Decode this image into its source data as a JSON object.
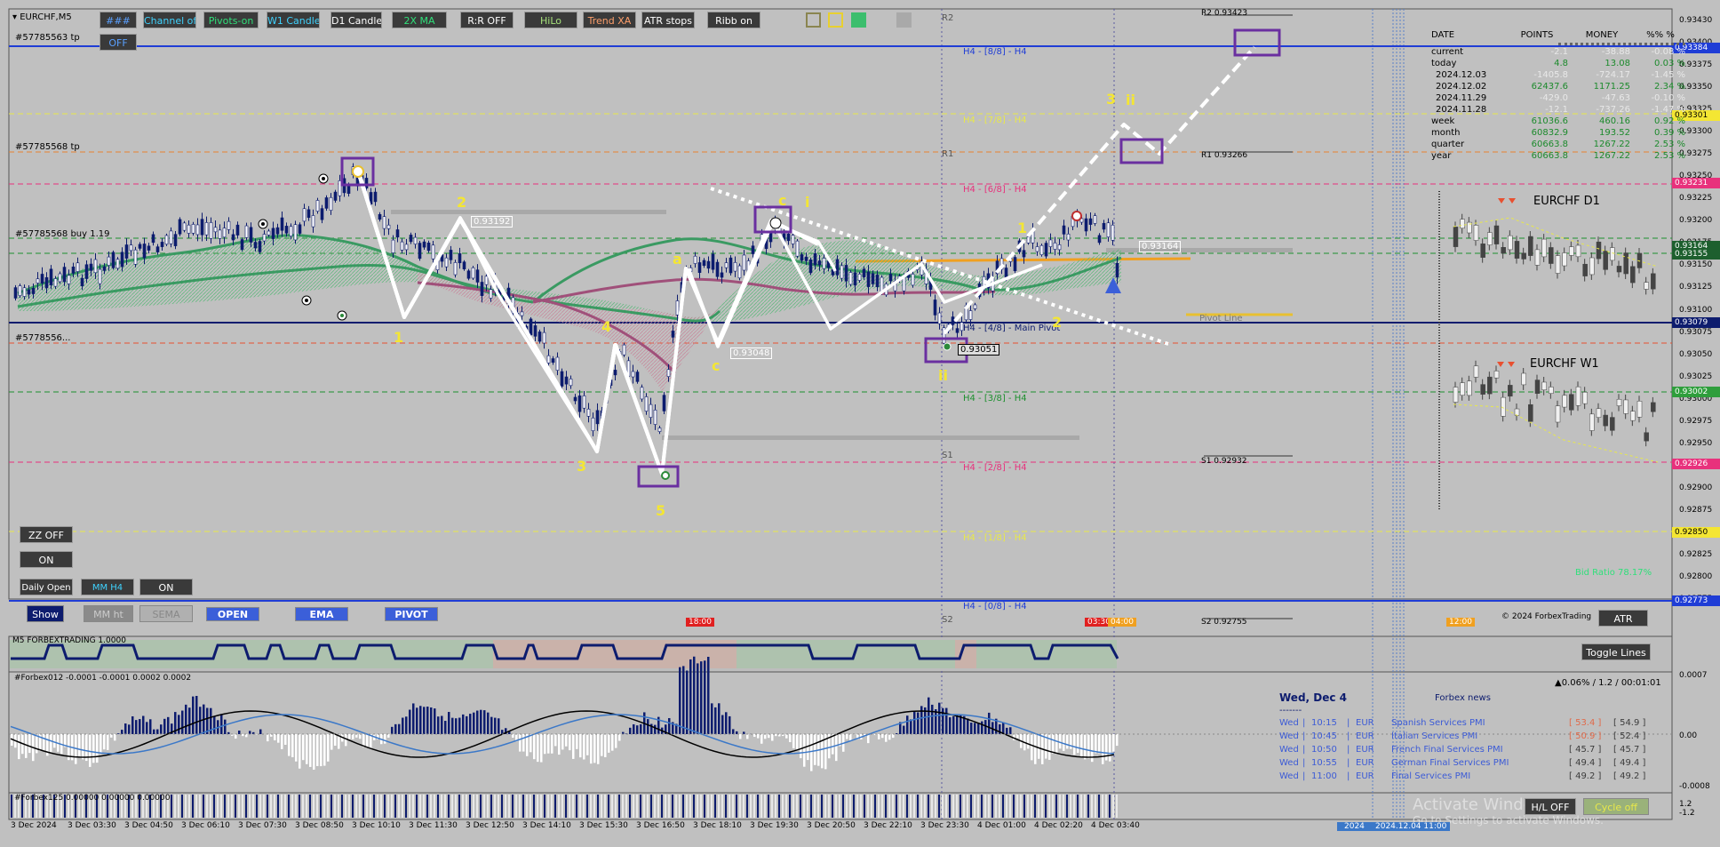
{
  "symbol_title": "EURCHF,M5",
  "toolbar": {
    "buttons": [
      "###",
      "Channel off",
      "Pivots-on",
      "W1 Candle",
      "D1 Candle",
      "2X MA",
      "R:R OFF",
      "HiLo",
      "Trend XA",
      "ATR stops",
      "Ribb on"
    ],
    "colors": [
      "#5aa0ff",
      "#3fd3ff",
      "#2fe07a",
      "#3fd3ff",
      "#ffffff",
      "#2fe07a",
      "#ffffff",
      "#a5e07a",
      "#ff9f6b",
      "#ffffff",
      "#ffffff"
    ],
    "off": "OFF",
    "swatch_colors": [
      "#d9d68a",
      "#f4e633",
      "#3cbe6d",
      "#a9a9a9"
    ]
  },
  "trade_labels": {
    "tp1": "#57785563 tp",
    "tp2": "#57785568 tp",
    "buy": "#57785568 buy 1.19",
    "short": "#5778556..."
  },
  "pivots": {
    "r2": "R2",
    "r2_val": "R2 0.93423",
    "r1": "R1",
    "r1_val": "R1 0.93266",
    "s1": "S1",
    "s1_val": "S1 0.92932",
    "s2": "S2",
    "s2_val": "S2 0.92755",
    "pivot_line": "Pivot Line"
  },
  "murrey": {
    "h88": "H4 - [8/8] - H4",
    "h78": "H4 - [7/8] - H4",
    "h68": "H4 - [6/8] - H4",
    "h48": "H4 - [4/8] - Main Pivot",
    "h38": "H4 - [3/8] - H4",
    "h28": "H4 - [2/8] - H4",
    "h18": "H4 - [1/8] - H4",
    "h08": "H4 - [0/8] - H4"
  },
  "price_scale": [
    "0.93430",
    "0.93400",
    "0.93375",
    "0.93350",
    "0.93325",
    "0.93300",
    "0.93275",
    "0.93250",
    "0.93225",
    "0.93200",
    "0.93175",
    "0.93150",
    "0.93125",
    "0.93100",
    "0.93075",
    "0.93050",
    "0.93025",
    "0.93000",
    "0.92975",
    "0.92950",
    "0.92925",
    "0.92900",
    "0.92875",
    "0.92850",
    "0.92825",
    "0.92800",
    "0.92775"
  ],
  "price_tags": [
    {
      "text": "0.93384",
      "bg": "#1f3dd6",
      "fg": "#ffffff"
    },
    {
      "text": "0.93301",
      "bg": "#f4e633",
      "fg": "#000000"
    },
    {
      "text": "0.93231",
      "bg": "#e8317c",
      "fg": "#ffffff"
    },
    {
      "text": "0.93164",
      "bg": "#1d5f2e",
      "fg": "#ffffff"
    },
    {
      "text": "0.93155",
      "bg": "#1d5f2e",
      "fg": "#ffffff"
    },
    {
      "text": "0.93079",
      "bg": "#0d1c6e",
      "fg": "#ffffff"
    },
    {
      "text": "0.93002",
      "bg": "#2f9e3c",
      "fg": "#ffffff"
    },
    {
      "text": "0.92926",
      "bg": "#e8317c",
      "fg": "#ffffff"
    },
    {
      "text": "0.92850",
      "bg": "#f4e633",
      "fg": "#000000"
    },
    {
      "text": "0.92773",
      "bg": "#1f3dd6",
      "fg": "#ffffff"
    }
  ],
  "price_boxes": [
    "0.93192",
    "0.93048",
    "0.93051",
    "0.93164"
  ],
  "wave_labels": [
    "1",
    "2",
    "3",
    "4",
    "5",
    "a",
    "c",
    "c",
    "i",
    "ii",
    "1",
    "2",
    "3",
    "ii"
  ],
  "stats": {
    "headers": [
      "DATE",
      "POINTS",
      "MONEY",
      "%%  %"
    ],
    "rows": [
      [
        "current",
        "-2.1",
        "-38.88",
        "-0.08  %"
      ],
      [
        "today",
        "4.8",
        "13.08",
        "0.03  %"
      ],
      [
        "2024.12.03",
        "-1405.8",
        "-724.17",
        "-1.45  %"
      ],
      [
        "2024.12.02",
        "62437.6",
        "1171.25",
        "2.34  %"
      ],
      [
        "2024.11.29",
        "-429.0",
        "-47.63",
        "-0.10  %"
      ],
      [
        "2024.11.28",
        "-12.1",
        "-737.26",
        "-1.47  %"
      ],
      [
        "week",
        "61036.6",
        "460.16",
        "0.92  %"
      ],
      [
        "month",
        "60832.9",
        "193.52",
        "0.39  %"
      ],
      [
        "quarter",
        "60663.8",
        "1267.22",
        "2.53  %"
      ],
      [
        "year",
        "60663.8",
        "1267.22",
        "2.53  %"
      ]
    ]
  },
  "mini_charts": {
    "d1": "EURCHF  D1",
    "w1": "EURCHF  W1"
  },
  "bid_ratio": "Bid Ratio 78.17%",
  "copyright": "© 2024 ForbexTrading",
  "atr_button": "ATR",
  "toggle_lines": "Toggle Lines",
  "left_buttons": {
    "zz": "ZZ OFF",
    "on1": "ON",
    "daily_open": "Daily Open",
    "mm_h4": "MM H4",
    "on2": "ON"
  },
  "bottom_bar": {
    "show": "Show",
    "mm_ht": "MM ht",
    "sema": "SEMA",
    "open": "OPEN",
    "ema": "EMA",
    "pivot": "PIVOT"
  },
  "time_tags": {
    "t1": "18:00",
    "t2": "03:30",
    "t3": "04:00",
    "t4": "12:00"
  },
  "indicator1_label": "M5 FORBEXTRADING 1.0000",
  "indicator2_label": "#Forbex012 -0.0001 -0.0001 0.0002 0.0002",
  "indicator2_scale": [
    "0.0007",
    "0.00",
    "-0.0008"
  ],
  "indicator3_label": "#Forbex125 0.00000 0.00000 0.00000",
  "indicator3_scale": [
    "1.2",
    "-1.2"
  ],
  "news": {
    "date": "Wed, Dec 4",
    "title": "Forbex news",
    "info": "▲0.06% / 1.2 / 00:01:01",
    "items": [
      {
        "day": "Wed",
        "time": "10:15",
        "cur": "EUR",
        "event": "Spanish Services PMI",
        "actual": "[ 53.4 ]",
        "prev": "[ 54.9 ]",
        "actual_color": "#e06a4a"
      },
      {
        "day": "Wed",
        "time": "10:45",
        "cur": "EUR",
        "event": "Italian Services PMI",
        "actual": "[ 50.9 ]",
        "prev": "[ 52.4 ]",
        "actual_color": "#e06a4a"
      },
      {
        "day": "Wed",
        "time": "10:50",
        "cur": "EUR",
        "event": "French Final Services PMI",
        "actual": "[ 45.7 ]",
        "prev": "[ 45.7 ]",
        "actual_color": "#3c3c3c"
      },
      {
        "day": "Wed",
        "time": "10:55",
        "cur": "EUR",
        "event": "German Final Services PMI",
        "actual": "[ 49.4 ]",
        "prev": "[ 49.4 ]",
        "actual_color": "#3c3c3c"
      },
      {
        "day": "Wed",
        "time": "11:00",
        "cur": "EUR",
        "event": "Final Services PMI",
        "actual": "[ 49.2 ]",
        "prev": "[ 49.2 ]",
        "actual_color": "#3c3c3c"
      }
    ]
  },
  "watermark": {
    "line1": "Activate Windows",
    "line2": "Go to Settings to activate Windows."
  },
  "hl_off": "H/L OFF",
  "cycle_off": "Cycle off",
  "time_axis": [
    "3 Dec 2024",
    "3 Dec 03:30",
    "3 Dec 04:50",
    "3 Dec 06:10",
    "3 Dec 07:30",
    "3 Dec 08:50",
    "3 Dec 10:10",
    "3 Dec 11:30",
    "3 Dec 12:50",
    "3 Dec 14:10",
    "3 Dec 15:30",
    "3 Dec 16:50",
    "3 Dec 18:10",
    "3 Dec 19:30",
    "3 Dec 20:50",
    "3 Dec 22:10",
    "3 Dec 23:30",
    "4 Dec 01:00",
    "4 Dec 02:20",
    "4 Dec 03:40"
  ],
  "cursor_time": {
    "year": "2024",
    "stamp": "2024.12.04 11:00"
  }
}
